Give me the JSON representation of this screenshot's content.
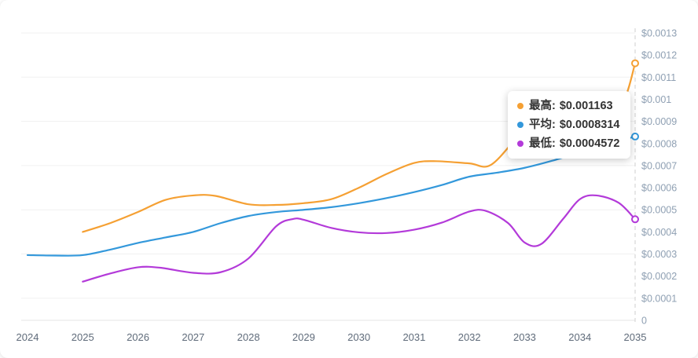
{
  "tooltip": {
    "items": [
      {
        "label": "最高",
        "separator": ":",
        "value": "$0.001163",
        "color": "#F5A033"
      },
      {
        "label": "平均",
        "separator": ":",
        "value": "$0.0008314",
        "color": "#3398DB"
      },
      {
        "label": "最低",
        "separator": ":",
        "value": "$0.0004572",
        "color": "#B33AD9"
      }
    ]
  },
  "axis": {
    "x_labels": [
      "2024",
      "2025",
      "2026",
      "2027",
      "2028",
      "2029",
      "2030",
      "2031",
      "2032",
      "2033",
      "2034",
      "2035"
    ],
    "y_labels": [
      "$0.0013",
      "$0.0012",
      "$0.0011",
      "$0.001",
      "$0.0009",
      "$0.0008",
      "$0.0007",
      "$0.0006",
      "$0.0005",
      "$0.0004",
      "$0.0003",
      "$0.0002",
      "$0.0001",
      "0"
    ]
  },
  "chart_data": {
    "type": "line",
    "title": "",
    "xlabel": "",
    "ylabel": "",
    "x_range": [
      2024,
      2035
    ],
    "ylim": [
      0,
      0.0013
    ],
    "grid": "horizontal, every 0.0002 starting at 0.0001",
    "y_axis_position": "right",
    "legend_position": "floating tooltip top-right",
    "colors": {
      "high": "#F5A033",
      "avg": "#3398DB",
      "low": "#B33AD9",
      "grid": "#f0f0f0",
      "axis_dash": "#cfcfcf"
    },
    "series": [
      {
        "name": "最高",
        "color": "#F5A033",
        "end_value": 0.001163,
        "points": [
          [
            2025,
            0.0004
          ],
          [
            2025.5,
            0.00044
          ],
          [
            2026,
            0.00049
          ],
          [
            2026.5,
            0.000545
          ],
          [
            2027,
            0.000565
          ],
          [
            2027.4,
            0.000563
          ],
          [
            2028,
            0.000525
          ],
          [
            2028.5,
            0.000522
          ],
          [
            2029,
            0.00053
          ],
          [
            2029.5,
            0.000548
          ],
          [
            2030,
            0.0006
          ],
          [
            2030.5,
            0.000662
          ],
          [
            2031,
            0.000712
          ],
          [
            2031.4,
            0.00072
          ],
          [
            2032,
            0.00071
          ],
          [
            2032.4,
            0.000705
          ],
          [
            2033,
            0.00086
          ],
          [
            2033.5,
            0.00091
          ],
          [
            2034,
            0.00094
          ],
          [
            2034.5,
            0.000975
          ],
          [
            2034.8,
            0.001
          ],
          [
            2035,
            0.001163
          ]
        ]
      },
      {
        "name": "平均",
        "color": "#3398DB",
        "end_value": 0.0008314,
        "points": [
          [
            2024,
            0.000295
          ],
          [
            2024.5,
            0.000293
          ],
          [
            2025,
            0.000295
          ],
          [
            2025.5,
            0.00032
          ],
          [
            2026,
            0.00035
          ],
          [
            2026.5,
            0.000375
          ],
          [
            2027,
            0.0004
          ],
          [
            2027.5,
            0.00044
          ],
          [
            2028,
            0.000472
          ],
          [
            2028.5,
            0.00049
          ],
          [
            2029,
            0.0005
          ],
          [
            2029.5,
            0.000512
          ],
          [
            2030,
            0.00053
          ],
          [
            2030.5,
            0.000553
          ],
          [
            2031,
            0.00058
          ],
          [
            2031.5,
            0.000612
          ],
          [
            2032,
            0.00065
          ],
          [
            2032.5,
            0.000668
          ],
          [
            2033,
            0.00069
          ],
          [
            2033.5,
            0.000722
          ],
          [
            2034,
            0.00076
          ],
          [
            2034.5,
            0.000798
          ],
          [
            2035,
            0.0008314
          ]
        ]
      },
      {
        "name": "最低",
        "color": "#B33AD9",
        "end_value": 0.0004572,
        "points": [
          [
            2025,
            0.000175
          ],
          [
            2025.5,
            0.000212
          ],
          [
            2026,
            0.00024
          ],
          [
            2026.4,
            0.000238
          ],
          [
            2027,
            0.000215
          ],
          [
            2027.5,
            0.000218
          ],
          [
            2028,
            0.00028
          ],
          [
            2028.5,
            0.000425
          ],
          [
            2028.8,
            0.000458
          ],
          [
            2029,
            0.000455
          ],
          [
            2029.5,
            0.000418
          ],
          [
            2030,
            0.000398
          ],
          [
            2030.5,
            0.000395
          ],
          [
            2031,
            0.00041
          ],
          [
            2031.5,
            0.000442
          ],
          [
            2032,
            0.000492
          ],
          [
            2032.3,
            0.000495
          ],
          [
            2032.7,
            0.00044
          ],
          [
            2033,
            0.000352
          ],
          [
            2033.3,
            0.000345
          ],
          [
            2033.7,
            0.00046
          ],
          [
            2034,
            0.000548
          ],
          [
            2034.3,
            0.000565
          ],
          [
            2034.7,
            0.000532
          ],
          [
            2035,
            0.0004572
          ]
        ]
      }
    ]
  }
}
